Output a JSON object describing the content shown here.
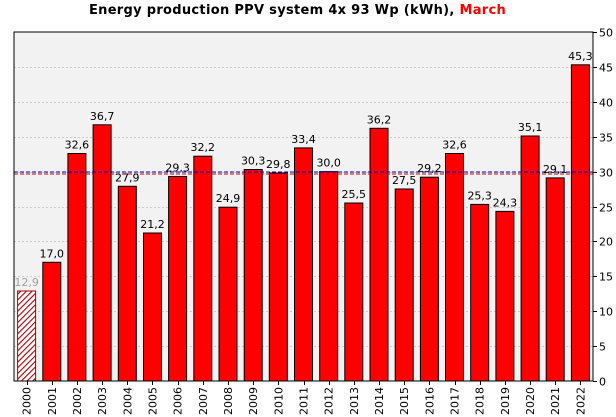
{
  "title": {
    "text": "Energy production PPV system 4x 93 Wp (kWh),",
    "highlight": "March",
    "highlight_color": "#ff0000"
  },
  "chart_data": {
    "type": "bar",
    "title": "Energy production PPV system 4x 93 Wp (kWh), March",
    "categories": [
      "2000",
      "2001",
      "2002",
      "2003",
      "2004",
      "2005",
      "2006",
      "2007",
      "2008",
      "2009",
      "2010",
      "2011",
      "2012",
      "2013",
      "2014",
      "2015",
      "2016",
      "2017",
      "2018",
      "2019",
      "2020",
      "2021",
      "2022"
    ],
    "values": [
      12.9,
      17.0,
      32.6,
      36.7,
      27.9,
      21.2,
      29.3,
      32.2,
      24.9,
      30.3,
      29.8,
      33.4,
      30.0,
      25.5,
      36.2,
      27.5,
      29.2,
      32.6,
      25.3,
      24.3,
      35.1,
      29.1,
      45.3
    ],
    "value_labels": [
      "12,9",
      "17,0",
      "32,6",
      "36,7",
      "27,9",
      "21,2",
      "29,3",
      "32,2",
      "24,9",
      "30,3",
      "29,8",
      "33,4",
      "30,0",
      "25,5",
      "36,2",
      "27,5",
      "29,2",
      "32,6",
      "25,3",
      "24,3",
      "35,1",
      "29,1",
      "45,3"
    ],
    "partial_categories": [
      "2000"
    ],
    "average": 29.8,
    "ylim": [
      0,
      50
    ],
    "yticks": [
      0,
      5,
      10,
      15,
      20,
      25,
      30,
      35,
      40,
      45,
      50
    ],
    "y_axis_side": "right",
    "grid": true,
    "xlabel": "",
    "ylabel": "",
    "colors": {
      "bar": "#ff0000",
      "partial_bar": "#b00000",
      "average_line_1": "#0000cc",
      "average_line_2": "#cc0000",
      "plot_background": "#f2f2f2",
      "grid": "#cccccc"
    }
  }
}
